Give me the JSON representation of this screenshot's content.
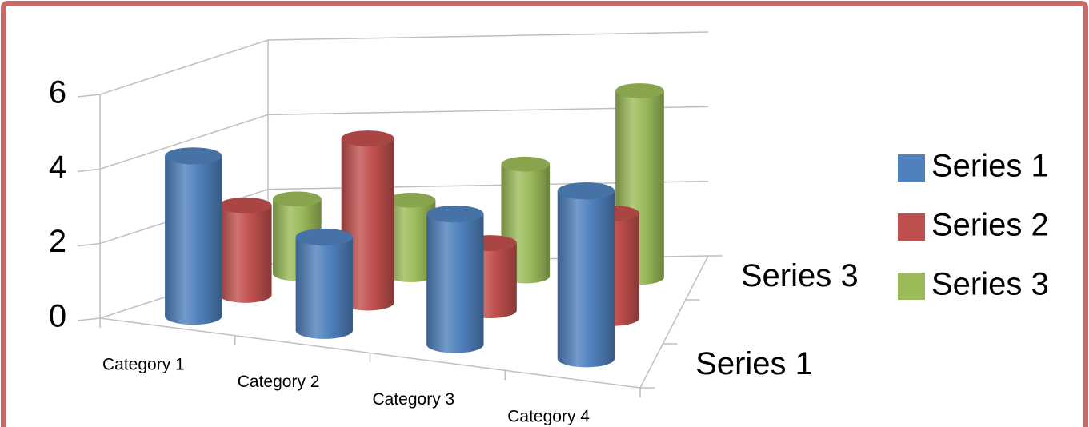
{
  "chart_data": {
    "type": "bar",
    "categories": [
      "Category 1",
      "Category 2",
      "Category 3",
      "Category 4"
    ],
    "depth_labels": [
      "Series 1",
      null,
      "Series 3"
    ],
    "series": [
      {
        "name": "Series 1",
        "color": "#4f81bd",
        "values": [
          4.3,
          2.5,
          3.5,
          4.5
        ]
      },
      {
        "name": "Series 2",
        "color": "#c0504d",
        "values": [
          2.4,
          4.4,
          1.8,
          2.8
        ]
      },
      {
        "name": "Series 3",
        "color": "#9bbb59",
        "values": [
          2,
          2,
          3,
          5
        ]
      }
    ],
    "ylim": [
      0,
      6
    ],
    "yticks": [
      0,
      2,
      4,
      6
    ],
    "grid": true,
    "legend": "right"
  }
}
